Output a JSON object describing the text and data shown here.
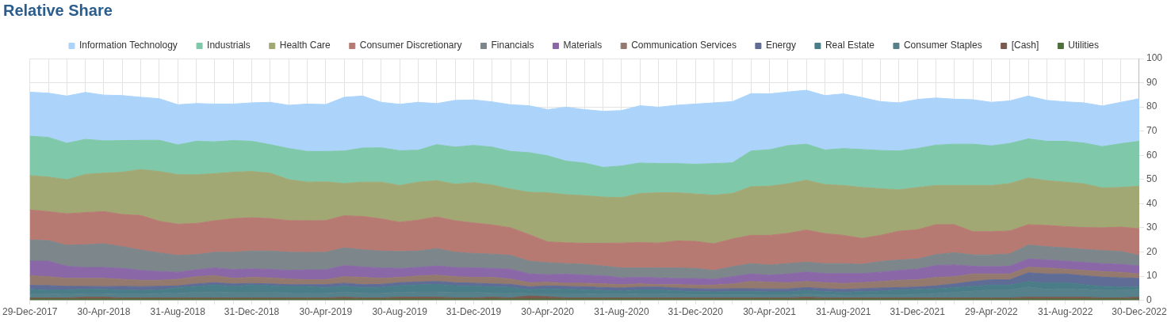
{
  "chart_data": {
    "type": "area",
    "title": "Relative Share",
    "stacked": true,
    "grid": true,
    "legend": "top",
    "ylim": [
      0,
      100
    ],
    "yticks": [
      0,
      10,
      20,
      30,
      40,
      50,
      60,
      70,
      80,
      90,
      100
    ],
    "categories": [
      "29-Dec-2017",
      null,
      null,
      null,
      "30-Apr-2018",
      null,
      null,
      null,
      "31-Aug-2018",
      null,
      null,
      null,
      "31-Dec-2018",
      null,
      null,
      null,
      "30-Apr-2019",
      null,
      null,
      null,
      "30-Aug-2019",
      null,
      null,
      null,
      "31-Dec-2019",
      null,
      null,
      null,
      "30-Apr-2020",
      null,
      null,
      null,
      "31-Aug-2020",
      null,
      null,
      null,
      "31-Dec-2020",
      null,
      null,
      null,
      "30-Apr-2021",
      null,
      null,
      null,
      "31-Aug-2021",
      null,
      null,
      null,
      "31-Dec-2021",
      null,
      null,
      null,
      "29-Apr-2022",
      null,
      null,
      null,
      "31-Aug-2022",
      null,
      null,
      null,
      "30-Dec-2022"
    ],
    "series": [
      {
        "name": "Utilities",
        "color": "#4e6e3c",
        "values": [
          0.5,
          0.5,
          0.5,
          0.5,
          0.5,
          0.5,
          0.5,
          0.5,
          0.5,
          0.5,
          0.5,
          0.5,
          0.5,
          0.5,
          0.5,
          0.5,
          0.5,
          0.5,
          0.5,
          0.5,
          0.5,
          0.5,
          0.5,
          0.5,
          0.5,
          0.5,
          0.5,
          0.5,
          0.5,
          0.5,
          0.5,
          0.5,
          0.5,
          0.5,
          0.5,
          0.5,
          0.5,
          0.5,
          0.5,
          0.5,
          0.5,
          0.5,
          0.5,
          0.5,
          0.5,
          0.5,
          0.5,
          0.5,
          0.5,
          0.5,
          0.5,
          0.5,
          0.5,
          0.5,
          0.5,
          0.5,
          0.5,
          0.5,
          0.5,
          0.5,
          0.5
        ]
      },
      {
        "name": "[Cash]",
        "color": "#7a5a4e",
        "values": [
          0.5,
          0.5,
          0.5,
          0.8,
          0.8,
          0.5,
          0.5,
          0.5,
          0.5,
          0.5,
          0.5,
          0.5,
          0.5,
          0.5,
          0.5,
          0.5,
          0.5,
          0.8,
          0.5,
          0.5,
          0.8,
          0.8,
          0.8,
          0.5,
          0.5,
          0.8,
          0.5,
          1.3,
          1.0,
          0.5,
          0.5,
          0.5,
          0.5,
          0.5,
          0.5,
          0.5,
          0.5,
          0.5,
          0.5,
          0.5,
          0.5,
          0.5,
          0.8,
          0.5,
          0.5,
          0.5,
          0.5,
          0.5,
          0.5,
          0.5,
          0.5,
          0.5,
          0.5,
          0.5,
          0.8,
          0.8,
          0.8,
          0.8,
          0.5,
          0.5,
          0.8
        ]
      },
      {
        "name": "Consumer Staples",
        "color": "#56808a",
        "values": [
          1.8,
          1.8,
          1.6,
          1.5,
          1.5,
          1.6,
          1.6,
          1.8,
          2.0,
          2.3,
          2.5,
          2.3,
          2.3,
          2.3,
          2.0,
          2.0,
          2.0,
          2.0,
          2.0,
          2.0,
          2.0,
          2.2,
          2.2,
          2.3,
          2.3,
          1.7,
          2.0,
          1.0,
          1.3,
          1.8,
          1.8,
          1.6,
          1.6,
          1.8,
          1.8,
          1.6,
          1.4,
          1.4,
          1.4,
          1.4,
          1.3,
          1.3,
          1.3,
          1.3,
          1.2,
          1.2,
          1.3,
          1.3,
          1.5,
          1.8,
          2.3,
          2.8,
          3.3,
          3.3,
          4.2,
          3.2,
          3.5,
          3.2,
          3.3,
          3.3,
          3.2
        ]
      },
      {
        "name": "Real Estate",
        "color": "#4a7d88",
        "values": [
          1.7,
          1.5,
          1.7,
          1.8,
          1.7,
          1.7,
          1.5,
          1.5,
          2.3,
          2.5,
          2.8,
          2.5,
          3.0,
          2.8,
          2.8,
          2.8,
          2.3,
          2.6,
          2.3,
          2.4,
          2.8,
          2.9,
          3.1,
          2.8,
          2.6,
          2.6,
          2.4,
          1.6,
          2.0,
          1.8,
          1.6,
          1.5,
          1.3,
          1.5,
          1.5,
          1.3,
          1.2,
          1.1,
          1.2,
          1.2,
          1.2,
          1.2,
          1.5,
          1.3,
          1.1,
          1.4,
          1.5,
          2.0,
          2.0,
          2.0,
          2.0,
          2.0,
          2.0,
          2.0,
          2.3,
          2.6,
          2.5,
          2.0,
          1.5,
          1.2,
          1.0
        ]
      },
      {
        "name": "Energy",
        "color": "#5f6c96",
        "values": [
          1.7,
          1.8,
          1.5,
          1.2,
          1.2,
          1.5,
          1.6,
          1.5,
          0.7,
          1.0,
          1.0,
          1.0,
          0.7,
          0.7,
          0.7,
          0.7,
          1.2,
          1.2,
          1.2,
          1.2,
          1.2,
          1.2,
          1.2,
          1.2,
          1.2,
          1.2,
          1.2,
          1.2,
          1.2,
          1.2,
          1.2,
          1.2,
          1.2,
          1.2,
          1.2,
          1.2,
          1.2,
          1.2,
          1.2,
          1.2,
          1.2,
          1.2,
          1.2,
          1.2,
          1.2,
          1.2,
          1.3,
          1.0,
          1.0,
          1.2,
          1.5,
          2.0,
          2.2,
          2.2,
          3.6,
          3.8,
          3.6,
          3.7,
          3.8,
          3.8,
          3.6
        ]
      },
      {
        "name": "Communication Services",
        "color": "#947a6e",
        "values": [
          4.0,
          3.7,
          3.3,
          3.3,
          3.4,
          2.9,
          2.6,
          2.5,
          2.7,
          3.0,
          2.9,
          2.3,
          2.5,
          2.5,
          2.3,
          2.0,
          2.0,
          2.7,
          3.0,
          2.5,
          2.2,
          2.5,
          2.6,
          2.5,
          2.4,
          2.7,
          2.2,
          1.7,
          1.5,
          1.3,
          1.5,
          1.5,
          1.4,
          1.3,
          1.0,
          1.4,
          1.5,
          1.6,
          2.0,
          3.0,
          2.8,
          2.6,
          2.5,
          2.5,
          2.5,
          2.5,
          2.7,
          3.0,
          3.0,
          3.5,
          3.0,
          3.1,
          2.4,
          2.4,
          2.3,
          2.5,
          2.0,
          2.2,
          2.3,
          2.3,
          1.8
        ]
      },
      {
        "name": "Materials",
        "color": "#8a68a8",
        "values": [
          6.0,
          6.4,
          5.0,
          4.5,
          4.5,
          4.5,
          4.1,
          3.6,
          2.9,
          2.8,
          3.2,
          3.6,
          3.5,
          3.5,
          3.6,
          4.1,
          4.1,
          4.6,
          4.3,
          4.3,
          3.7,
          3.5,
          3.8,
          3.8,
          3.9,
          3.7,
          4.1,
          3.6,
          3.1,
          3.7,
          3.3,
          3.4,
          2.8,
          2.7,
          2.8,
          2.5,
          2.7,
          2.4,
          3.0,
          3.1,
          2.9,
          3.6,
          3.9,
          3.8,
          4.1,
          3.8,
          3.8,
          4.1,
          4.4,
          4.9,
          4.8,
          3.2,
          3.0,
          3.2,
          3.4,
          3.3,
          3.3,
          3.3,
          3.3,
          3.3,
          3.3
        ]
      },
      {
        "name": "Financials",
        "color": "#7c868b",
        "values": [
          8.8,
          8.5,
          8.7,
          9.4,
          9.8,
          9.0,
          8.4,
          7.7,
          7.0,
          6.3,
          6.5,
          7.2,
          7.4,
          7.6,
          7.5,
          7.2,
          7.3,
          7.3,
          7.1,
          7.0,
          7.0,
          6.8,
          7.2,
          6.3,
          6.0,
          5.9,
          5.7,
          5.3,
          5.0,
          4.4,
          4.5,
          4.0,
          4.1,
          3.9,
          4.1,
          4.4,
          4.2,
          3.7,
          4.1,
          4.3,
          4.2,
          4.3,
          4.1,
          4.1,
          4.1,
          3.8,
          4.5,
          4.3,
          4.2,
          4.5,
          5.1,
          4.7,
          4.9,
          5.1,
          5.8,
          5.5,
          5.5,
          5.4,
          5.4,
          5.3,
          4.4
        ]
      },
      {
        "name": "Consumer Discretionary",
        "color": "#b77a72",
        "values": [
          12.4,
          12.0,
          13.0,
          13.3,
          13.3,
          13.3,
          14.3,
          13.1,
          12.9,
          12.9,
          13.0,
          13.9,
          13.8,
          13.4,
          13.1,
          13.1,
          13.1,
          13.3,
          13.8,
          13.3,
          12.1,
          12.8,
          13.1,
          13.0,
          12.6,
          12.1,
          11.4,
          11.0,
          8.6,
          8.6,
          8.7,
          9.4,
          10.3,
          10.5,
          10.3,
          11.2,
          11.2,
          11.0,
          11.5,
          11.7,
          12.3,
          12.5,
          13.3,
          12.4,
          11.7,
          10.7,
          10.8,
          11.9,
          12.1,
          12.4,
          11.6,
          9.6,
          9.6,
          9.5,
          8.4,
          8.8,
          8.8,
          9.0,
          9.4,
          10.1,
          11.0
        ]
      },
      {
        "name": "Health Care",
        "color": "#a2a874",
        "values": [
          14.2,
          14.3,
          14.1,
          15.8,
          15.9,
          17.5,
          19.0,
          20.6,
          20.5,
          20.1,
          19.5,
          19.2,
          19.1,
          18.8,
          16.9,
          16.0,
          16.0,
          13.3,
          14.2,
          15.2,
          15.2,
          15.7,
          15.0,
          15.1,
          16.7,
          16.5,
          16.0,
          17.5,
          20.3,
          19.9,
          19.7,
          19.1,
          18.8,
          20.3,
          20.8,
          19.9,
          19.6,
          20.1,
          18.8,
          20.1,
          20.3,
          20.5,
          20.6,
          20.3,
          20.6,
          21.1,
          19.3,
          17.1,
          17.5,
          16.2,
          16.2,
          19.1,
          19.1,
          19.6,
          19.3,
          18.5,
          18.4,
          18.1,
          16.5,
          16.4,
          17.6
        ]
      },
      {
        "name": "Industrials",
        "color": "#80c8aa",
        "values": [
          16.3,
          16.4,
          15.1,
          14.5,
          13.4,
          13.1,
          12.1,
          12.9,
          12.3,
          13.9,
          13.2,
          13.1,
          12.5,
          11.8,
          12.9,
          12.7,
          12.6,
          13.5,
          14.1,
          14.2,
          14.4,
          13.2,
          14.9,
          15.4,
          15.4,
          15.7,
          15.6,
          16.4,
          15.3,
          13.9,
          13.5,
          12.3,
          13.1,
          12.6,
          12.1,
          12.1,
          12.3,
          13.1,
          12.7,
          14.8,
          15.1,
          15.8,
          14.9,
          14.3,
          15.3,
          15.7,
          15.8,
          16.1,
          16.1,
          16.7,
          17.1,
          17.1,
          16.4,
          16.6,
          16.2,
          16.3,
          16.9,
          16.9,
          17.1,
          18.1,
          18.6
        ]
      },
      {
        "name": "Information Technology",
        "color": "#acd4fb",
        "values": [
          18.2,
          18.3,
          19.5,
          19.4,
          18.9,
          18.6,
          17.8,
          17.2,
          16.6,
          15.6,
          15.6,
          15.1,
          15.9,
          17.5,
          17.9,
          19.6,
          19.4,
          22.2,
          21.5,
          18.8,
          19.2,
          19.8,
          17.0,
          19.3,
          18.8,
          18.7,
          19.3,
          19.4,
          19.1,
          22.3,
          22.1,
          23.2,
          22.9,
          23.7,
          23.3,
          24.1,
          24.9,
          25.1,
          25.3,
          23.7,
          23.1,
          22.2,
          22.3,
          22.5,
          22.6,
          21.5,
          20.2,
          19.9,
          20.3,
          19.5,
          18.6,
          18.4,
          18.0,
          17.6,
          17.7,
          16.9,
          16.3,
          16.6,
          16.8,
          17.1,
          17.6
        ]
      }
    ]
  }
}
